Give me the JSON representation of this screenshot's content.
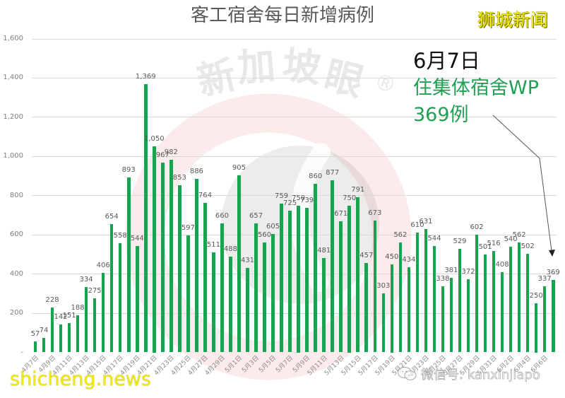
{
  "header": {
    "title": "客工宿舍每日新增病例"
  },
  "brand": {
    "top_right": "狮城新闻",
    "bottom_left": "shicheng.news"
  },
  "watermarks": {
    "center_chars": [
      "新",
      "加",
      "坡",
      "眼",
      "®"
    ],
    "wechat": "微信号: kanxinjiapo",
    "wechat_icon": "wechat-icon"
  },
  "annotation": {
    "date": "6月7日",
    "line1": "住集体宿舍WP",
    "line2": "369例",
    "arrow_target": "6月7日"
  },
  "colors": {
    "bar": "#17a34f",
    "annotation_green": "#1fa055",
    "annotation_date": "#111111",
    "brand_yellow": "#f2ec00",
    "gridline": "#d9d9d9",
    "title": "#595959",
    "watermark_ring": "#e64646",
    "watermark_disc": "#6e6e6e"
  },
  "chart_data": {
    "type": "bar",
    "title": "客工宿舍每日新增病例",
    "xlabel": "",
    "ylabel": "",
    "ylim": [
      0,
      1600
    ],
    "yticks": [
      0,
      200,
      400,
      600,
      800,
      1000,
      1200,
      1400,
      1600
    ],
    "ytick_labels": [
      "-",
      "200",
      "400",
      "600",
      "800",
      "1,000",
      "1,200",
      "1,400",
      "1,600"
    ],
    "grid": true,
    "legend": null,
    "data_labels": true,
    "categories": [
      "4月7日",
      "4月8日",
      "4月9日",
      "4月10日",
      "4月11日",
      "4月12日",
      "4月13日",
      "4月14日",
      "4月15日",
      "4月16日",
      "4月17日",
      "4月18日",
      "4月19日",
      "4月20日",
      "4月21日",
      "4月22日",
      "4月23日",
      "4月24日",
      "4月25日",
      "4月26日",
      "4月27日",
      "4月28日",
      "4月29日",
      "4月30日",
      "5月1日",
      "5月2日",
      "5月3日",
      "5月4日",
      "5月5日",
      "5月6日",
      "5月7日",
      "5月8日",
      "5月9日",
      "5月10日",
      "5月11日",
      "5月12日",
      "5月13日",
      "5月14日",
      "5月15日",
      "5月16日",
      "5月17日",
      "5月18日",
      "5月19日",
      "5月20日",
      "5月21日",
      "5月22日",
      "5月23日",
      "5月24日",
      "5月25日",
      "5月26日",
      "5月27日",
      "5月28日",
      "5月29日",
      "5月30日",
      "5月31日",
      "6月1日",
      "6月2日",
      "6月3日",
      "6月4日",
      "6月5日",
      "6月6日",
      "6月7日"
    ],
    "values": [
      57,
      74,
      228,
      142,
      151,
      188,
      334,
      275,
      406,
      654,
      558,
      893,
      544,
      1369,
      1050,
      967,
      982,
      853,
      597,
      886,
      764,
      511,
      660,
      488,
      905,
      431,
      657,
      560,
      605,
      759,
      725,
      750,
      739,
      860,
      481,
      877,
      671,
      750,
      791,
      457,
      673,
      303,
      450,
      562,
      434,
      610,
      631,
      544,
      338,
      381,
      529,
      372,
      602,
      501,
      516,
      408,
      540,
      562,
      502,
      250,
      337,
      369
    ],
    "xtick_labels": [
      "4月7日",
      "4月9日",
      "4月11日",
      "4月13日",
      "4月15日",
      "4月17日",
      "4月19日",
      "4月21日",
      "4月23日",
      "4月25日",
      "4月27日",
      "4月29日",
      "5月1日",
      "5月3日",
      "5月5日",
      "5月7日",
      "5月9日",
      "5月11日",
      "5月13日",
      "5月15日",
      "5月17日",
      "5月19日",
      "5月21日",
      "5月23日",
      "5月25日",
      "5月27日",
      "5月29日",
      "5月31日",
      "6月2日",
      "6月4日",
      "6月6日"
    ],
    "annotations": [
      {
        "text": "6月7日 住集体宿舍WP 369例",
        "target_category": "6月7日",
        "target_value": 369
      }
    ]
  }
}
